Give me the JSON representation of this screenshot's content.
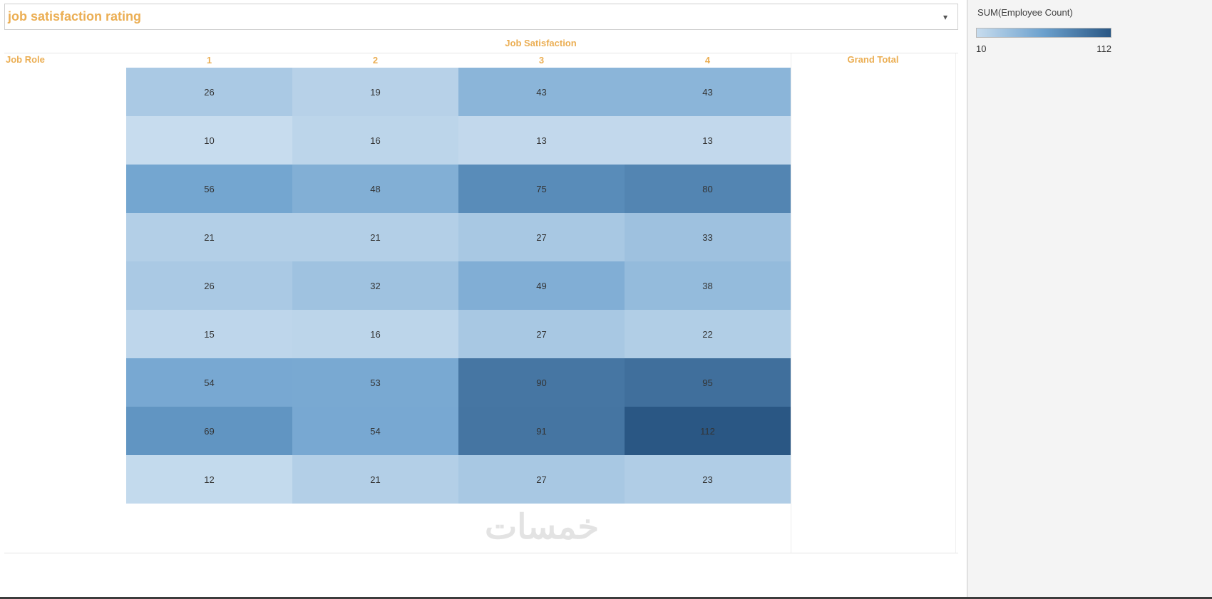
{
  "title_bar": {
    "title": "job satisfaction rating"
  },
  "icons": {
    "caret_down": "▾"
  },
  "table": {
    "column_axis_title": "Job Satisfaction",
    "row_axis_title": "Job Role",
    "grand_total_label": "Grand Total"
  },
  "legend": {
    "title": "SUM(Employee Count)",
    "min_label": "10",
    "max_label": "112"
  },
  "watermark": "خمسات",
  "colors": {
    "accent": "#ebae53",
    "cell_text": "#333333",
    "stops": [
      [
        0,
        "#c7dcee"
      ],
      [
        0.5,
        "#6ba0cd"
      ],
      [
        1,
        "#2a5784"
      ]
    ]
  },
  "chart_data": {
    "type": "heatmap",
    "title": "job satisfaction rating",
    "x_axis_label": "Job Satisfaction",
    "y_axis_label": "Job Role",
    "columns": [
      "1",
      "2",
      "3",
      "4"
    ],
    "rows": [
      "",
      "",
      "",
      "",
      "",
      "",
      "",
      "",
      ""
    ],
    "values": [
      [
        26,
        19,
        43,
        43
      ],
      [
        10,
        16,
        13,
        13
      ],
      [
        56,
        48,
        75,
        80
      ],
      [
        21,
        21,
        27,
        33
      ],
      [
        26,
        32,
        49,
        38
      ],
      [
        15,
        16,
        27,
        22
      ],
      [
        54,
        53,
        90,
        95
      ],
      [
        69,
        54,
        91,
        112
      ],
      [
        12,
        21,
        27,
        23
      ]
    ],
    "value_range": [
      10,
      112
    ],
    "legend_title": "SUM(Employee Count)",
    "legend_position": "right",
    "color_scale": "blues",
    "grand_total_column_shown": true,
    "grand_total_values_visible": false
  }
}
